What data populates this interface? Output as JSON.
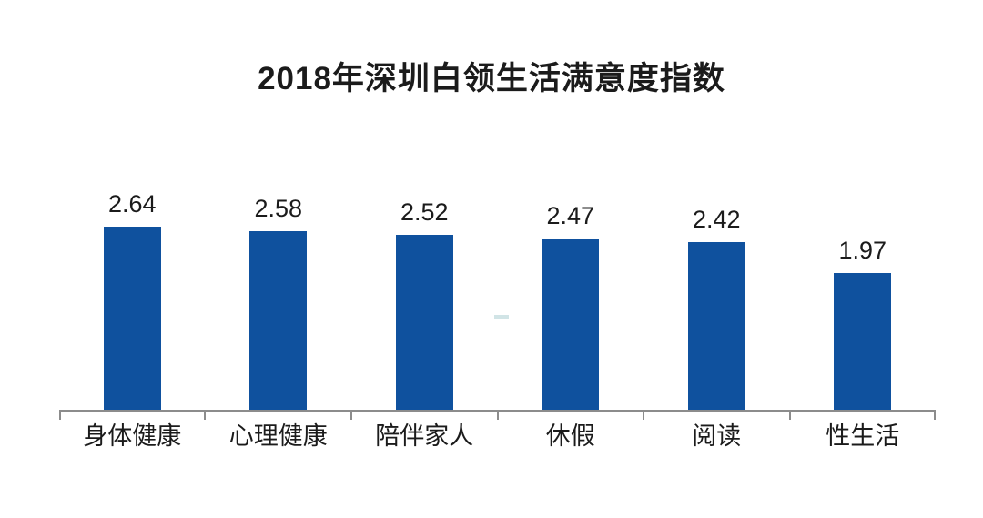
{
  "title": "2018年深圳白领生活满意度指数",
  "chart_data": {
    "type": "bar",
    "title": "2018年深圳白领生活满意度指数",
    "categories": [
      "身体健康",
      "心理健康",
      "陪伴家人",
      "休假",
      "阅读",
      "性生活"
    ],
    "values": [
      2.64,
      2.58,
      2.52,
      2.47,
      2.42,
      1.97
    ],
    "value_labels": [
      "2.64",
      "2.58",
      "2.52",
      "2.47",
      "2.42",
      "1.97"
    ],
    "xlabel": "",
    "ylabel": "",
    "ylim": [
      0,
      3
    ],
    "grid": false,
    "legend_position": "none",
    "bar_color": "#0f519e",
    "axis_color": "#8c8c8c",
    "text_color": "#1b1b1b",
    "background_color": "#ffffff"
  }
}
